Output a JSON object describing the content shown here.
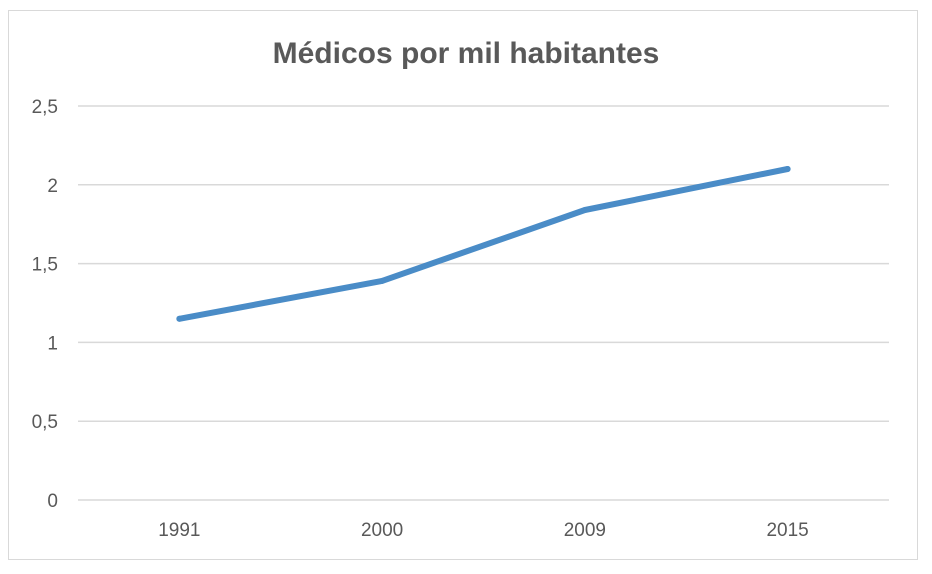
{
  "chart_data": {
    "type": "line",
    "title": "Médicos por mil habitantes",
    "categories": [
      "1991",
      "2000",
      "2009",
      "2015"
    ],
    "series": [
      {
        "values": [
          1.15,
          1.39,
          1.84,
          2.1
        ],
        "color": "#4a8cc7"
      }
    ],
    "ylim": [
      0,
      2.5
    ],
    "yticks": [
      "0",
      "0,5",
      "1",
      "1,5",
      "2",
      "2,5"
    ],
    "grid": true,
    "legend": "none"
  }
}
